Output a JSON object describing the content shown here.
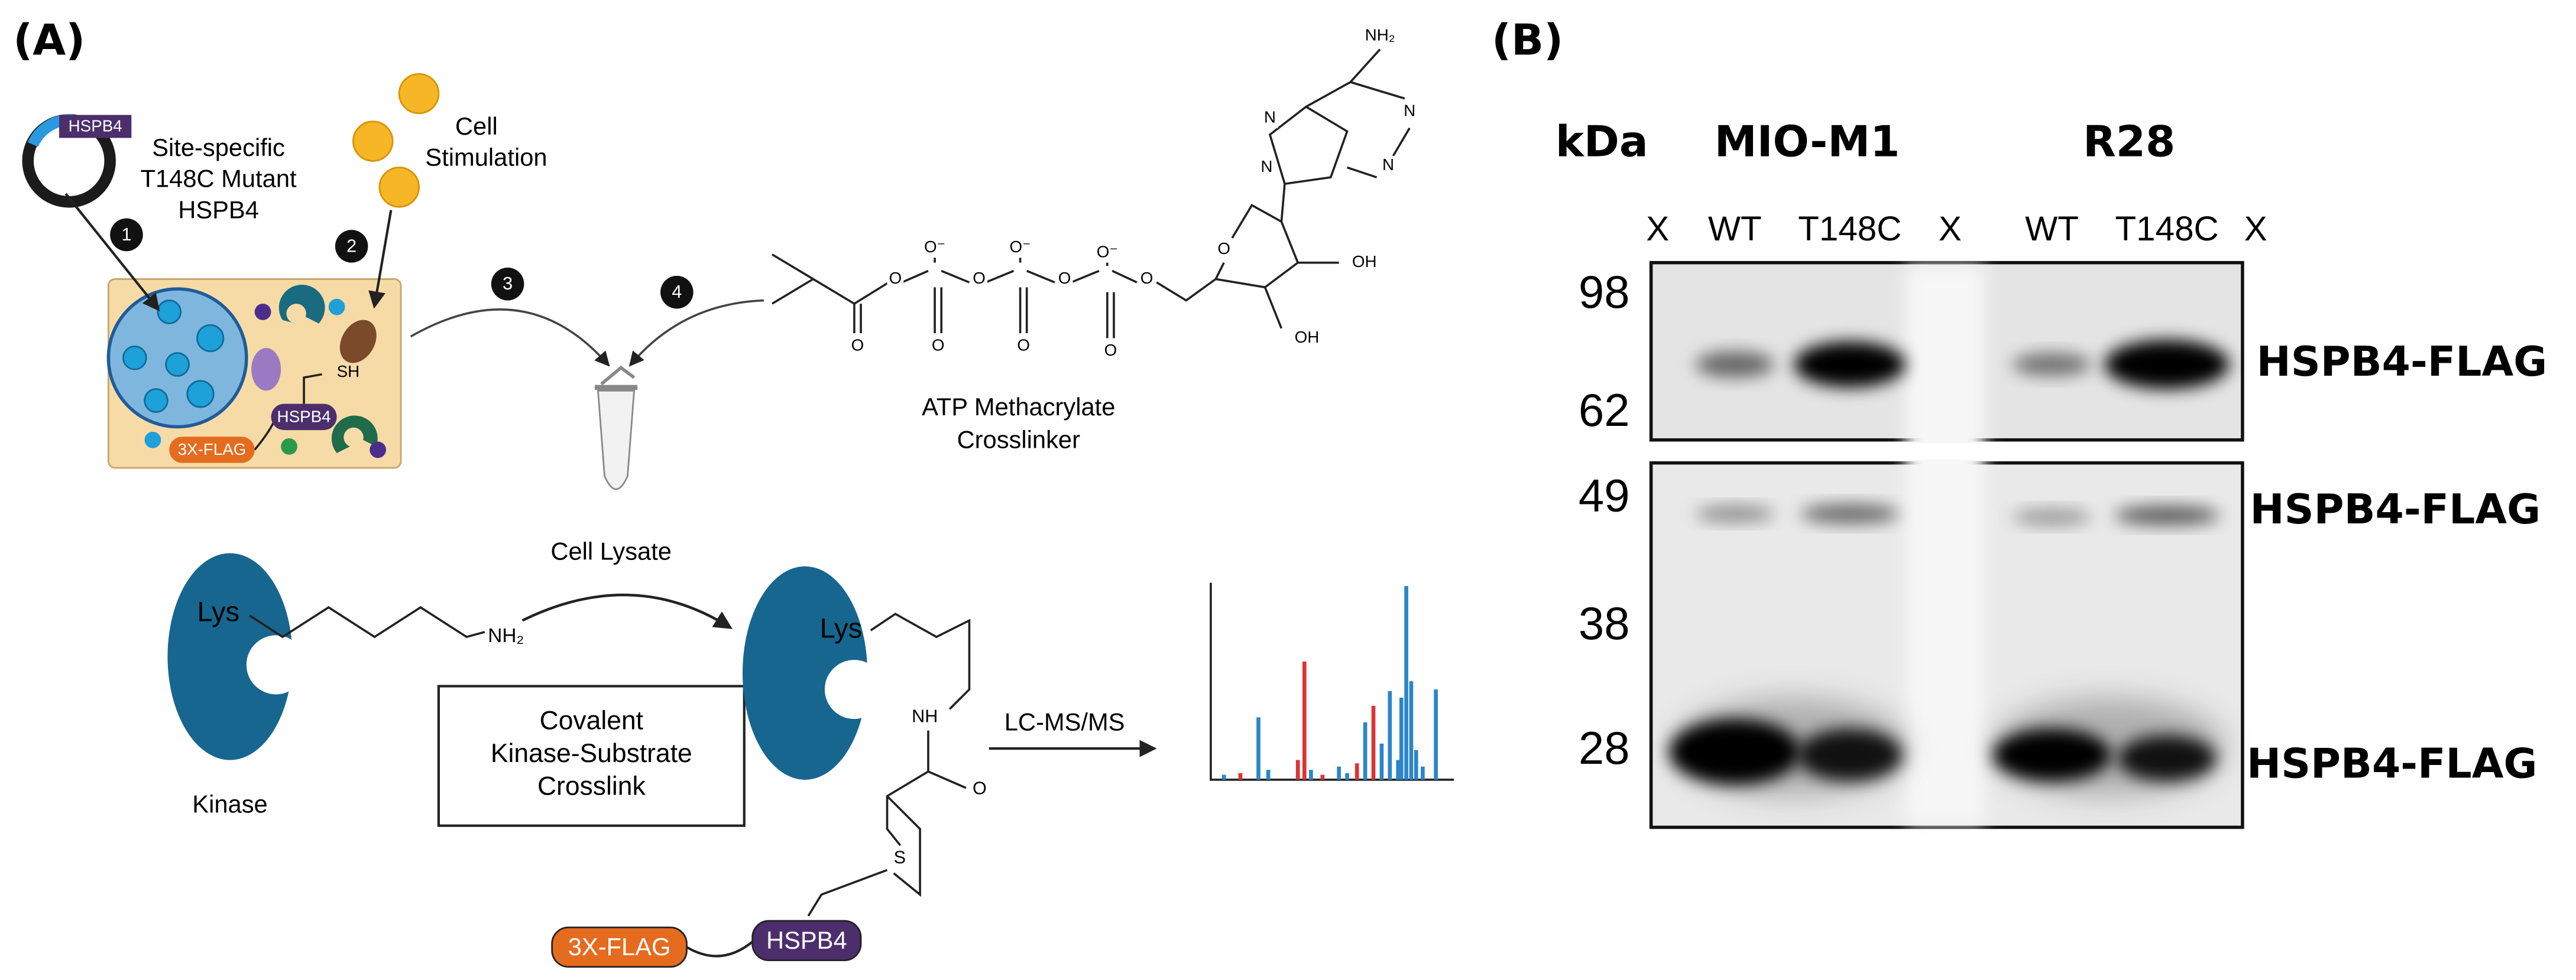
{
  "panel_a": {
    "label": "(A)",
    "plasmid_label": "HSPB4",
    "mutant_label": [
      "Site-specific",
      "T148C Mutant",
      "HSPB4"
    ],
    "stimulation_label": [
      "Cell",
      "Stimulation"
    ],
    "steps": [
      "1",
      "2",
      "3",
      "4"
    ],
    "cell": {
      "thiol": "SH",
      "tag": "3X-FLAG",
      "protein": "HSPB4"
    },
    "lysate_label": "Cell Lysate",
    "crosslinker_label": [
      "ATP Methacrylate",
      "Crosslinker"
    ],
    "atp_atoms": [
      "NH₂",
      "N",
      "N",
      "N",
      "N",
      "O",
      "OH",
      "OH",
      "O",
      "O⁻",
      "O",
      "O⁻",
      "O",
      "O⁻",
      "O",
      "O",
      "O",
      "O",
      "O"
    ],
    "kinase": {
      "residue": "Lys",
      "amine": "NH₂",
      "label": "Kinase"
    },
    "box_label": [
      "Covalent",
      "Kinase-Substrate",
      "Crosslink"
    ],
    "product": {
      "residue": "Lys",
      "amide": "NH",
      "carbonyl": "O",
      "thioether": "S",
      "tag": "3X-FLAG",
      "protein": "HSPB4"
    },
    "ms_label": "LC-MS/MS"
  },
  "panel_b": {
    "label": "(B)",
    "unit": "kDa",
    "cell_lines": [
      "MIO-M1",
      "R28"
    ],
    "lanes": [
      "X",
      "WT",
      "T148C",
      "X",
      "WT",
      "T148C",
      "X"
    ],
    "markers": [
      "98",
      "62",
      "49",
      "38",
      "28"
    ],
    "band_labels": [
      "HSPB4-FLAG",
      "HSPB4-FLAG",
      "HSPB4-FLAG"
    ]
  }
}
